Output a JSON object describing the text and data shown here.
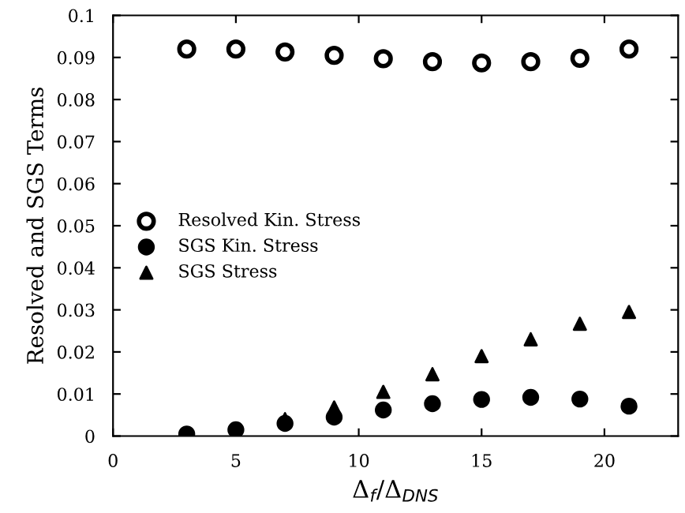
{
  "chart_data": {
    "type": "scatter",
    "xlabel": "Δ$_{f}$/Δ$_{DNS}$",
    "ylabel": "Resolved and SGS Terms",
    "x": [
      3,
      5,
      7,
      9,
      11,
      13,
      15,
      17,
      19,
      21
    ],
    "series": [
      {
        "name": "Resolved Kin. Stress",
        "color": "#000000",
        "marker": "circle",
        "values": [
          0.092,
          0.092,
          0.0913,
          0.0905,
          0.0897,
          0.089,
          0.0887,
          0.089,
          0.0898,
          0.092
        ]
      },
      {
        "name": "SGS Kin. Stress",
        "color": "#000000",
        "marker": "circle",
        "values": [
          0.0005,
          0.0015,
          0.003,
          0.0045,
          0.0062,
          0.0077,
          0.0087,
          0.0092,
          0.0088,
          0.0071
        ]
      },
      {
        "name": "SGS Stress",
        "color": "#000000",
        "marker": "triangle",
        "values": [
          null,
          null,
          0.004,
          0.0068,
          0.0105,
          0.0147,
          0.019,
          0.023,
          0.0267,
          0.0295
        ]
      }
    ],
    "xlim": [
      0,
      23
    ],
    "xticks": [
      0,
      5,
      10,
      15,
      20
    ],
    "ylim": [
      0,
      0.1
    ],
    "yticks": [
      0,
      0.01,
      0.02,
      0.03,
      0.04,
      0.05,
      0.06,
      0.07,
      0.08,
      0.09,
      0.1
    ],
    "grid": false,
    "legend": "left"
  }
}
